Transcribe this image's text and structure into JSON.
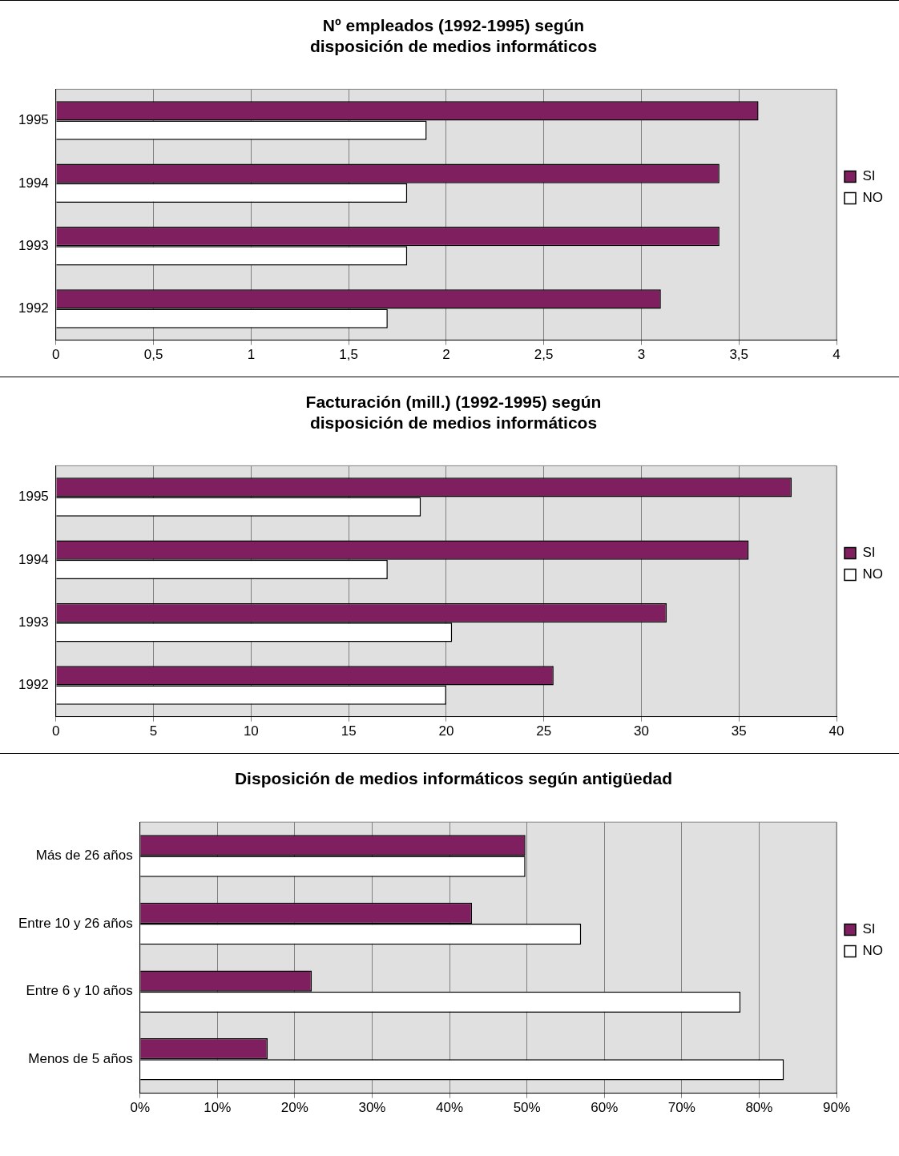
{
  "chart_data": [
    {
      "type": "bar",
      "orientation": "horizontal",
      "title": "Nº empleados (1992-1995) según\ndisposición de medios informáticos",
      "categories": [
        "1995",
        "1994",
        "1993",
        "1992"
      ],
      "series": [
        {
          "name": "SI",
          "color": "#7f1f5f",
          "values": [
            3.6,
            3.4,
            3.4,
            3.1
          ]
        },
        {
          "name": "NO",
          "color": "#ffffff",
          "values": [
            1.9,
            1.8,
            1.8,
            1.7
          ]
        }
      ],
      "xlim": [
        0,
        4
      ],
      "xticks": [
        0,
        {
          "value": 0.5,
          "label": "0,5"
        },
        1,
        {
          "value": 1.5,
          "label": "1,5"
        },
        2,
        {
          "value": 2.5,
          "label": "2,5"
        },
        3,
        {
          "value": 3.5,
          "label": "3,5"
        },
        4
      ],
      "grid": "x",
      "legend": "right"
    },
    {
      "type": "bar",
      "orientation": "horizontal",
      "title": "Facturación (mill.) (1992-1995) según\ndisposición de medios informáticos",
      "categories": [
        "1995",
        "1994",
        "1993",
        "1992"
      ],
      "series": [
        {
          "name": "SI",
          "color": "#7f1f5f",
          "values": [
            37.7,
            35.5,
            31.3,
            25.5
          ]
        },
        {
          "name": "NO",
          "color": "#ffffff",
          "values": [
            18.7,
            17.0,
            20.3,
            20.0
          ]
        }
      ],
      "xlim": [
        0,
        40
      ],
      "xticks": [
        0,
        5,
        10,
        15,
        20,
        25,
        30,
        35,
        40
      ],
      "grid": "x",
      "legend": "right"
    },
    {
      "type": "bar",
      "orientation": "horizontal",
      "title": "Disposición de medios informáticos según antigüedad",
      "categories": [
        "Más de 26 años",
        "Entre 10 y 26 años",
        "Entre 6 y 10 años",
        "Menos de 5 años"
      ],
      "series": [
        {
          "name": "SI",
          "color": "#7f1f5f",
          "values": [
            49.8,
            42.9,
            22.2,
            16.5
          ]
        },
        {
          "name": "NO",
          "color": "#ffffff",
          "values": [
            49.8,
            57.0,
            77.6,
            83.2
          ]
        }
      ],
      "xlim": [
        0,
        90
      ],
      "xticks": [
        {
          "value": 0,
          "label": "0%"
        },
        {
          "value": 10,
          "label": "10%"
        },
        {
          "value": 20,
          "label": "20%"
        },
        {
          "value": 30,
          "label": "30%"
        },
        {
          "value": 40,
          "label": "40%"
        },
        {
          "value": 50,
          "label": "50%"
        },
        {
          "value": 60,
          "label": "60%"
        },
        {
          "value": 70,
          "label": "70%"
        },
        {
          "value": 80,
          "label": "80%"
        },
        {
          "value": 90,
          "label": "90%"
        }
      ],
      "grid": "x",
      "legend": "right"
    }
  ]
}
